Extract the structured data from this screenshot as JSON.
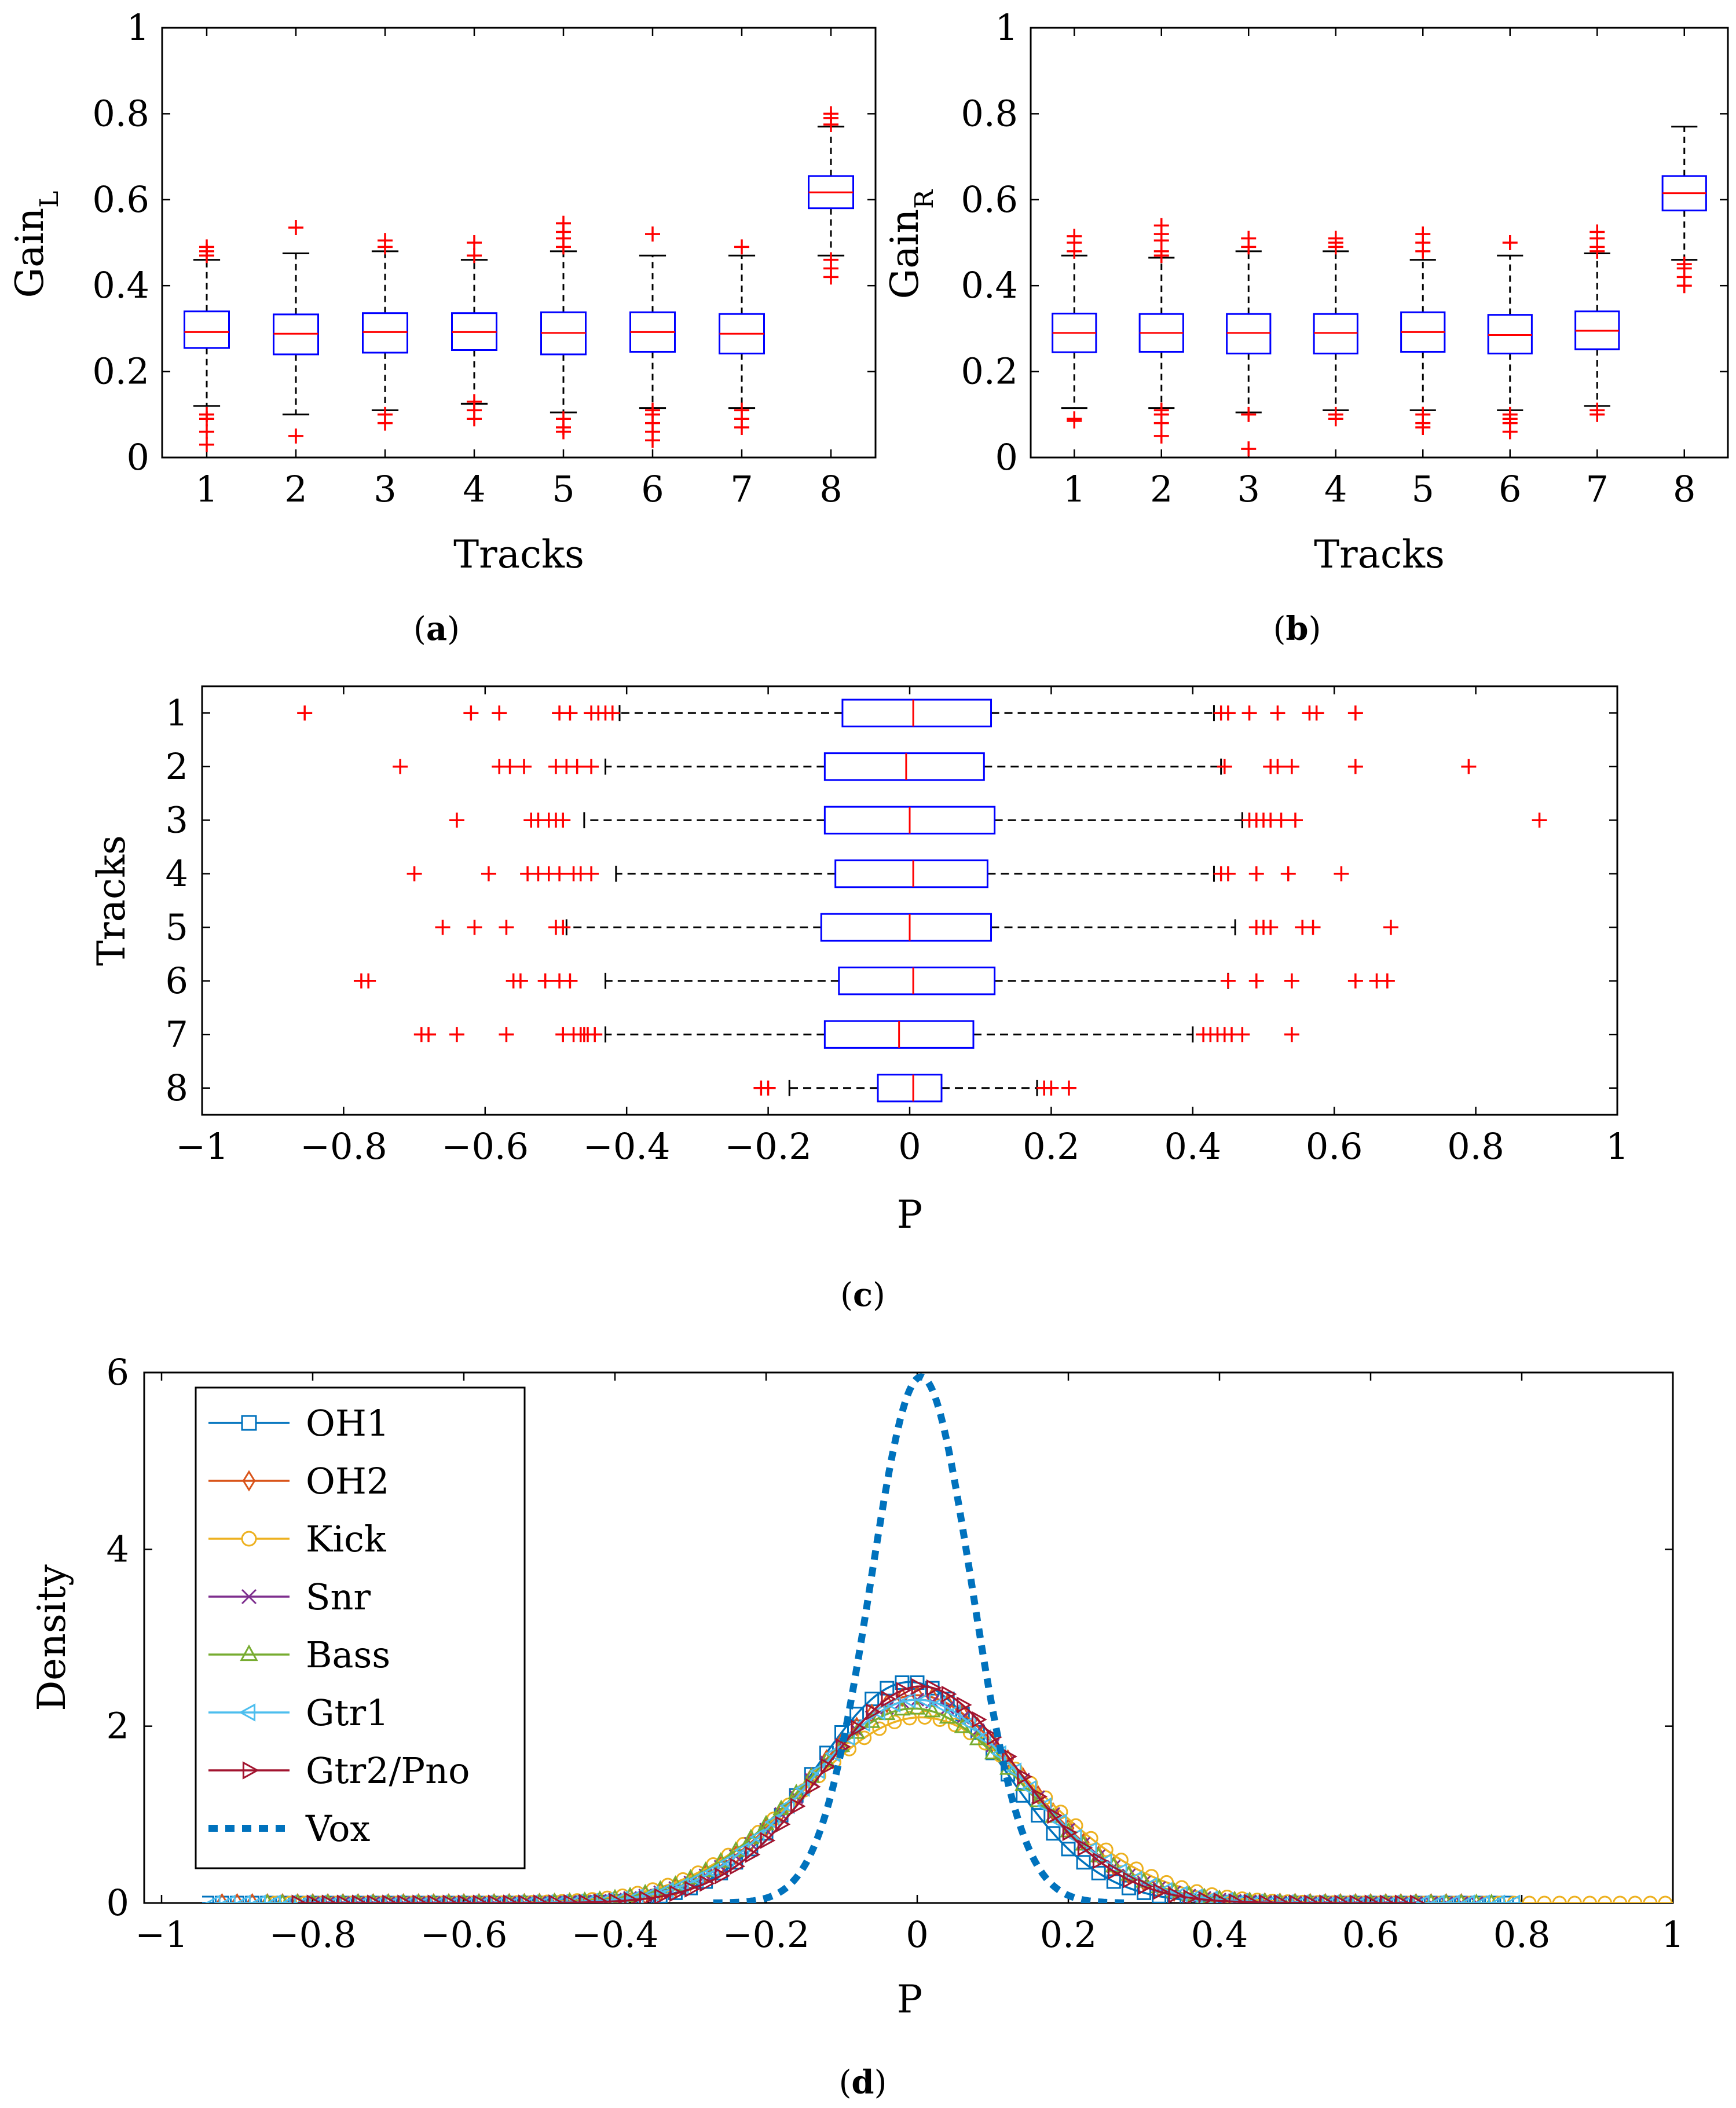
{
  "chart_data": [
    {
      "panel": "a",
      "panel_label": "(a)",
      "panel_letter": "a",
      "type": "boxplot",
      "orientation": "vertical",
      "xlabel": "Tracks",
      "ylabel_main": "Gain",
      "ylabel_sub": "L",
      "ylim": [
        0,
        1
      ],
      "yticks": [
        0,
        0.2,
        0.4,
        0.6,
        0.8,
        1
      ],
      "ytick_labels": [
        "0",
        "0.2",
        "0.4",
        "0.6",
        "0.8",
        "1"
      ],
      "categories": [
        "1",
        "2",
        "3",
        "4",
        "5",
        "6",
        "7",
        "8"
      ],
      "boxes": [
        {
          "track": "1",
          "whisker_low": 0.12,
          "q1": 0.255,
          "median": 0.292,
          "q3": 0.34,
          "whisker_high": 0.46,
          "outliers": [
            0.03,
            0.06,
            0.09,
            0.1,
            0.47,
            0.48,
            0.49
          ]
        },
        {
          "track": "2",
          "whisker_low": 0.1,
          "q1": 0.24,
          "median": 0.288,
          "q3": 0.333,
          "whisker_high": 0.475,
          "outliers": [
            0.05,
            0.535
          ]
        },
        {
          "track": "3",
          "whisker_low": 0.11,
          "q1": 0.244,
          "median": 0.292,
          "q3": 0.336,
          "whisker_high": 0.48,
          "outliers": [
            0.08,
            0.1,
            0.49,
            0.505
          ]
        },
        {
          "track": "4",
          "whisker_low": 0.125,
          "q1": 0.25,
          "median": 0.292,
          "q3": 0.336,
          "whisker_high": 0.46,
          "outliers": [
            0.09,
            0.11,
            0.13,
            0.47,
            0.5
          ]
        },
        {
          "track": "5",
          "whisker_low": 0.105,
          "q1": 0.24,
          "median": 0.29,
          "q3": 0.338,
          "whisker_high": 0.48,
          "outliers": [
            0.06,
            0.07,
            0.09,
            0.49,
            0.51,
            0.525,
            0.545
          ]
        },
        {
          "track": "6",
          "whisker_low": 0.115,
          "q1": 0.246,
          "median": 0.292,
          "q3": 0.338,
          "whisker_high": 0.47,
          "outliers": [
            0.04,
            0.06,
            0.08,
            0.1,
            0.11,
            0.52
          ]
        },
        {
          "track": "7",
          "whisker_low": 0.115,
          "q1": 0.242,
          "median": 0.288,
          "q3": 0.334,
          "whisker_high": 0.47,
          "outliers": [
            0.07,
            0.09,
            0.11,
            0.49
          ]
        },
        {
          "track": "8",
          "whisker_low": 0.47,
          "q1": 0.58,
          "median": 0.617,
          "q3": 0.655,
          "whisker_high": 0.77,
          "outliers": [
            0.42,
            0.44,
            0.46,
            0.775,
            0.79,
            0.8
          ]
        }
      ]
    },
    {
      "panel": "b",
      "panel_label": "(b)",
      "panel_letter": "b",
      "type": "boxplot",
      "orientation": "vertical",
      "xlabel": "Tracks",
      "ylabel_main": "Gain",
      "ylabel_sub": "R",
      "ylim": [
        0,
        1
      ],
      "yticks": [
        0,
        0.2,
        0.4,
        0.6,
        0.8,
        1
      ],
      "ytick_labels": [
        "0",
        "0.2",
        "0.4",
        "0.6",
        "0.8",
        "1"
      ],
      "categories": [
        "1",
        "2",
        "3",
        "4",
        "5",
        "6",
        "7",
        "8"
      ],
      "boxes": [
        {
          "track": "1",
          "whisker_low": 0.115,
          "q1": 0.245,
          "median": 0.29,
          "q3": 0.335,
          "whisker_high": 0.47,
          "outliers": [
            0.085,
            0.09,
            0.48,
            0.5,
            0.515
          ]
        },
        {
          "track": "2",
          "whisker_low": 0.115,
          "q1": 0.246,
          "median": 0.29,
          "q3": 0.334,
          "whisker_high": 0.465,
          "outliers": [
            0.05,
            0.08,
            0.1,
            0.11,
            0.47,
            0.48,
            0.505,
            0.52,
            0.54
          ]
        },
        {
          "track": "3",
          "whisker_low": 0.105,
          "q1": 0.242,
          "median": 0.29,
          "q3": 0.334,
          "whisker_high": 0.48,
          "outliers": [
            0.02,
            0.1,
            0.49,
            0.51
          ]
        },
        {
          "track": "4",
          "whisker_low": 0.11,
          "q1": 0.242,
          "median": 0.29,
          "q3": 0.334,
          "whisker_high": 0.48,
          "outliers": [
            0.09,
            0.1,
            0.49,
            0.5,
            0.51
          ]
        },
        {
          "track": "5",
          "whisker_low": 0.11,
          "q1": 0.246,
          "median": 0.292,
          "q3": 0.338,
          "whisker_high": 0.46,
          "outliers": [
            0.07,
            0.08,
            0.1,
            0.48,
            0.5,
            0.52
          ]
        },
        {
          "track": "6",
          "whisker_low": 0.11,
          "q1": 0.242,
          "median": 0.285,
          "q3": 0.332,
          "whisker_high": 0.47,
          "outliers": [
            0.06,
            0.08,
            0.09,
            0.1,
            0.5
          ]
        },
        {
          "track": "7",
          "whisker_low": 0.12,
          "q1": 0.252,
          "median": 0.295,
          "q3": 0.34,
          "whisker_high": 0.475,
          "outliers": [
            0.1,
            0.11,
            0.48,
            0.49,
            0.51,
            0.525
          ]
        },
        {
          "track": "8",
          "whisker_low": 0.46,
          "q1": 0.575,
          "median": 0.615,
          "q3": 0.655,
          "whisker_high": 0.77,
          "outliers": [
            0.4,
            0.42,
            0.44,
            0.45
          ]
        }
      ]
    },
    {
      "panel": "c",
      "panel_label": "(c)",
      "panel_letter": "c",
      "type": "boxplot",
      "orientation": "horizontal",
      "xlabel": "P",
      "ylabel": "Tracks",
      "xlim": [
        -1,
        1
      ],
      "xticks": [
        -1,
        -0.8,
        -0.6,
        -0.4,
        -0.2,
        0,
        0.2,
        0.4,
        0.6,
        0.8,
        1
      ],
      "xtick_labels": [
        "−1",
        "−0.8",
        "−0.6",
        "−0.4",
        "−0.2",
        "0",
        "0.2",
        "0.4",
        "0.6",
        "0.8",
        "1"
      ],
      "categories": [
        "1",
        "2",
        "3",
        "4",
        "5",
        "6",
        "7",
        "8"
      ],
      "boxes": [
        {
          "track": "1",
          "whisker_low": -0.41,
          "q1": -0.095,
          "median": 0.005,
          "q3": 0.115,
          "whisker_high": 0.43,
          "outliers": [
            -0.855,
            -0.62,
            -0.58,
            -0.495,
            -0.48,
            -0.45,
            -0.44,
            -0.43,
            -0.42,
            0.44,
            0.45,
            0.48,
            0.52,
            0.565,
            0.575,
            0.63
          ]
        },
        {
          "track": "2",
          "whisker_low": -0.43,
          "q1": -0.12,
          "median": -0.005,
          "q3": 0.105,
          "whisker_high": 0.44,
          "outliers": [
            -0.72,
            -0.58,
            -0.565,
            -0.545,
            -0.5,
            -0.485,
            -0.47,
            -0.45,
            0.445,
            0.51,
            0.52,
            0.54,
            0.63,
            0.79
          ]
        },
        {
          "track": "3",
          "whisker_low": -0.46,
          "q1": -0.12,
          "median": 0.0,
          "q3": 0.12,
          "whisker_high": 0.47,
          "outliers": [
            -0.64,
            -0.535,
            -0.525,
            -0.51,
            -0.5,
            -0.49,
            0.48,
            0.49,
            0.5,
            0.51,
            0.525,
            0.545,
            0.89
          ]
        },
        {
          "track": "4",
          "whisker_low": -0.415,
          "q1": -0.105,
          "median": 0.005,
          "q3": 0.11,
          "whisker_high": 0.43,
          "outliers": [
            -0.7,
            -0.595,
            -0.54,
            -0.525,
            -0.51,
            -0.495,
            -0.475,
            -0.465,
            -0.45,
            0.44,
            0.45,
            0.49,
            0.535,
            0.61
          ]
        },
        {
          "track": "5",
          "whisker_low": -0.485,
          "q1": -0.125,
          "median": 0.0,
          "q3": 0.115,
          "whisker_high": 0.46,
          "outliers": [
            -0.66,
            -0.615,
            -0.57,
            -0.5,
            -0.49,
            0.49,
            0.5,
            0.51,
            0.555,
            0.57,
            0.68
          ]
        },
        {
          "track": "6",
          "whisker_low": -0.43,
          "q1": -0.1,
          "median": 0.005,
          "q3": 0.12,
          "whisker_high": 0.45,
          "outliers": [
            -0.775,
            -0.765,
            -0.56,
            -0.55,
            -0.515,
            -0.495,
            -0.48,
            0.45,
            0.49,
            0.54,
            0.63,
            0.66,
            0.675
          ]
        },
        {
          "track": "7",
          "whisker_low": -0.43,
          "q1": -0.12,
          "median": -0.015,
          "q3": 0.09,
          "whisker_high": 0.4,
          "outliers": [
            -0.69,
            -0.68,
            -0.64,
            -0.57,
            -0.49,
            -0.475,
            -0.465,
            -0.46,
            -0.455,
            -0.445,
            0.415,
            0.425,
            0.435,
            0.445,
            0.455,
            0.47,
            0.54
          ]
        },
        {
          "track": "8",
          "whisker_low": -0.17,
          "q1": -0.045,
          "median": 0.005,
          "q3": 0.045,
          "whisker_high": 0.18,
          "outliers": [
            -0.21,
            -0.2,
            0.19,
            0.2,
            0.225
          ]
        }
      ]
    },
    {
      "panel": "d",
      "panel_label": "(d)",
      "panel_letter": "d",
      "type": "line",
      "xlabel": "P",
      "ylabel": "Density",
      "xlim": [
        -1,
        1
      ],
      "ylim": [
        0,
        6
      ],
      "xticks": [
        -1,
        -0.8,
        -0.6,
        -0.4,
        -0.2,
        0,
        0.2,
        0.4,
        0.6,
        0.8,
        1
      ],
      "xtick_labels": [
        "−1",
        "−0.8",
        "−0.6",
        "−0.4",
        "−0.2",
        "0",
        "0.2",
        "0.4",
        "0.6",
        "0.8",
        "1"
      ],
      "yticks": [
        0,
        2,
        4,
        6
      ],
      "ytick_labels": [
        "0",
        "2",
        "4",
        "6"
      ],
      "legend_position": "top-left",
      "series": [
        {
          "name": "OH1",
          "color": "#0072bd",
          "marker": "square",
          "dashed": false,
          "peak": 2.5,
          "center": -0.01,
          "sigma": 0.125,
          "range": [
            -1.0,
            0.78
          ]
        },
        {
          "name": "OH2",
          "color": "#d95319",
          "marker": "diamond",
          "dashed": false,
          "peak": 2.35,
          "center": 0.0,
          "sigma": 0.14,
          "range": [
            -0.92,
            0.72
          ]
        },
        {
          "name": "Kick",
          "color": "#edb120",
          "marker": "circle",
          "dashed": false,
          "peak": 2.1,
          "center": 0.005,
          "sigma": 0.155,
          "range": [
            -0.85,
            1.0
          ]
        },
        {
          "name": "Snr",
          "color": "#7e2f8e",
          "marker": "x",
          "dashed": false,
          "peak": 2.3,
          "center": 0.0,
          "sigma": 0.14,
          "range": [
            -0.8,
            0.74
          ]
        },
        {
          "name": "Bass",
          "color": "#77ac30",
          "marker": "triangle-up",
          "dashed": false,
          "peak": 2.2,
          "center": -0.005,
          "sigma": 0.145,
          "range": [
            -0.86,
            0.76
          ]
        },
        {
          "name": "Gtr1",
          "color": "#4dbeee",
          "marker": "triangle-left",
          "dashed": false,
          "peak": 2.3,
          "center": 0.0,
          "sigma": 0.14,
          "range": [
            -0.93,
            0.8
          ]
        },
        {
          "name": "Gtr2/Pno",
          "color": "#a2142f",
          "marker": "triangle-right",
          "dashed": false,
          "peak": 2.45,
          "center": 0.005,
          "sigma": 0.13,
          "range": [
            -0.82,
            0.66
          ]
        },
        {
          "name": "Vox",
          "color": "#0072bd",
          "marker": "none",
          "dashed": true,
          "peak": 5.95,
          "center": 0.005,
          "sigma": 0.067,
          "range": [
            -0.27,
            0.28
          ]
        }
      ]
    }
  ]
}
